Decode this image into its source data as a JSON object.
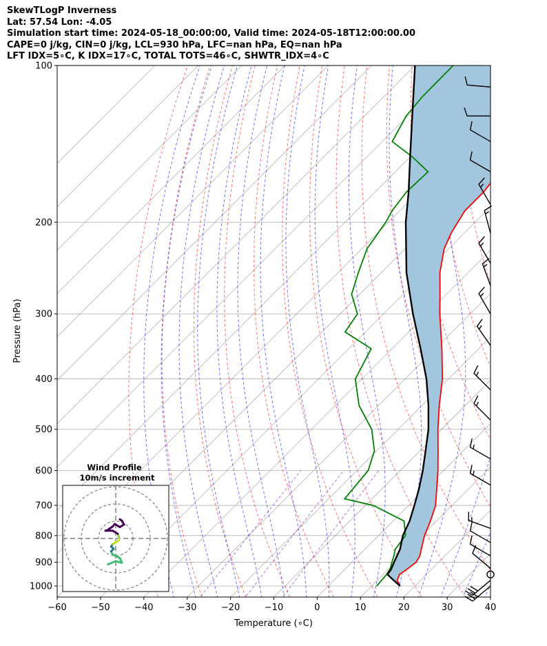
{
  "header": {
    "line1": "SkewTLogP Inverness",
    "line2": "Lat: 57.54   Lon: -4.05",
    "line3": "Simulation start time: 2024-05-18_00:00:00, Valid time: 2024-05-18T12:00:00.00",
    "line4": "CAPE=0 j/kg, CIN=0 j/kg, LCL=930 hPa, LFC=nan hPa, EQ=nan hPa",
    "line5": "LFT IDX=5∘C, K IDX=17∘C, TOTAL TOTS=46∘C, SHWTR_IDX=4∘C"
  },
  "chart_data": {
    "type": "line",
    "title": "SkewTLogP Inverness",
    "xlabel": "Temperature (∘C)",
    "ylabel": "Pressure (hPa)",
    "xlim": [
      -60,
      40
    ],
    "ylim": [
      1050,
      100
    ],
    "y_scale": "log",
    "x_ticks": [
      -60,
      -50,
      -40,
      -30,
      -20,
      -10,
      0,
      10,
      20,
      30,
      40
    ],
    "x_tick_labels": [
      "−60",
      "−50",
      "−40",
      "−30",
      "−20",
      "−10",
      "0",
      "10",
      "20",
      "30",
      "40"
    ],
    "y_ticks": [
      1000,
      900,
      800,
      700,
      600,
      500,
      400,
      300,
      200,
      100
    ],
    "y_tick_labels": [
      "1000",
      "900",
      "800",
      "700",
      "600",
      "500",
      "400",
      "300",
      "200",
      "100"
    ],
    "grid": true,
    "colors": {
      "temperature": "#ff0000",
      "dewpoint": "#008000",
      "parcel": "#000000",
      "shading": "#a3c6df",
      "dry_adiabats": "#ff0000",
      "moist_adiabats": "#0000ff",
      "isotherms": "#808080",
      "mixing_ratio": "#8000c0"
    },
    "series": [
      {
        "key": "temperature",
        "pressure": [
          1000,
          975,
          950,
          925,
          900,
          875,
          850,
          800,
          750,
          700,
          650,
          600,
          550,
          500,
          450,
          400,
          350,
          300,
          275,
          250,
          225,
          210,
          200,
          190,
          175,
          160,
          150,
          140,
          125,
          115,
          100
        ],
        "temp": [
          16.6,
          14.6,
          13.8,
          14.4,
          14.8,
          14.2,
          13.0,
          10.6,
          8.6,
          6.2,
          2.6,
          -1.3,
          -5.8,
          -10.8,
          -16.0,
          -21.4,
          -28.5,
          -37.0,
          -41.5,
          -46.5,
          -51.0,
          -53.0,
          -54.0,
          -55.0,
          -55.0,
          -56.0,
          -56.5,
          -57.2,
          -58.5,
          -59.2,
          -60.5
        ]
      },
      {
        "key": "dewpoint",
        "pressure": [
          1000,
          975,
          950,
          925,
          900,
          875,
          850,
          800,
          750,
          700,
          680,
          600,
          550,
          500,
          450,
          400,
          350,
          325,
          300,
          275,
          250,
          225,
          200,
          190,
          175,
          160,
          150,
          140,
          125,
          115,
          100
        ],
        "temp": [
          11.2,
          11.0,
          10.8,
          10.3,
          9.2,
          8.2,
          7.0,
          6.2,
          2.5,
          -8.2,
          -16.3,
          -17.4,
          -20.5,
          -26.1,
          -34.5,
          -41.5,
          -44.8,
          -54.7,
          -56.0,
          -61.9,
          -65.3,
          -68.8,
          -70.6,
          -71.8,
          -72.8,
          -72.5,
          -79.4,
          -87.7,
          -90.4,
          -91.1,
          -91.2
        ]
      },
      {
        "key": "parcel",
        "pressure": [
          1000,
          975,
          950,
          930,
          900,
          850,
          800,
          750,
          700,
          650,
          600,
          550,
          500,
          450,
          400,
          350,
          300,
          250,
          200,
          175,
          150,
          125,
          100
        ],
        "temp": [
          16.6,
          13.8,
          11.0,
          10.7,
          9.7,
          8.1,
          5.6,
          3.8,
          1.3,
          -1.5,
          -4.8,
          -8.7,
          -13.0,
          -18.5,
          -25.1,
          -33.4,
          -43.2,
          -54.2,
          -66.0,
          -72.3,
          -80.0,
          -89.0,
          -100.0
        ]
      }
    ],
    "wind_barbs": [
      {
        "pressure": 1000,
        "speed_kt": 30,
        "dir_deg": 230
      },
      {
        "pressure": 975,
        "speed_kt": 30,
        "dir_deg": 230
      },
      {
        "pressure": 950,
        "speed_kt": 0,
        "dir_deg": 0
      },
      {
        "pressure": 925,
        "speed_kt": 10,
        "dir_deg": 310
      },
      {
        "pressure": 875,
        "speed_kt": 10,
        "dir_deg": 300
      },
      {
        "pressure": 825,
        "speed_kt": 10,
        "dir_deg": 300
      },
      {
        "pressure": 775,
        "speed_kt": 15,
        "dir_deg": 290
      },
      {
        "pressure": 640,
        "speed_kt": 15,
        "dir_deg": 300
      },
      {
        "pressure": 570,
        "speed_kt": 15,
        "dir_deg": 300
      },
      {
        "pressure": 480,
        "speed_kt": 15,
        "dir_deg": 315
      },
      {
        "pressure": 420,
        "speed_kt": 15,
        "dir_deg": 315
      },
      {
        "pressure": 345,
        "speed_kt": 15,
        "dir_deg": 325
      },
      {
        "pressure": 300,
        "speed_kt": 15,
        "dir_deg": 330
      },
      {
        "pressure": 265,
        "speed_kt": 15,
        "dir_deg": 340
      },
      {
        "pressure": 240,
        "speed_kt": 15,
        "dir_deg": 330
      },
      {
        "pressure": 210,
        "speed_kt": 15,
        "dir_deg": 345
      },
      {
        "pressure": 185,
        "speed_kt": 15,
        "dir_deg": 330
      },
      {
        "pressure": 160,
        "speed_kt": 10,
        "dir_deg": 300
      },
      {
        "pressure": 140,
        "speed_kt": 10,
        "dir_deg": 300
      },
      {
        "pressure": 125,
        "speed_kt": 10,
        "dir_deg": 270
      },
      {
        "pressure": 110,
        "speed_kt": 10,
        "dir_deg": 275
      }
    ],
    "hodograph": {
      "title": "Wind Profile",
      "subtitle": "10m/s increment",
      "rings": 3,
      "points": [
        {
          "u": -1.5,
          "v": -5.0,
          "color": "#3fbc73"
        },
        {
          "u": 0.0,
          "v": -4.4,
          "color": "#3fbc73"
        },
        {
          "u": 1.2,
          "v": -4.7,
          "color": "#3fbc73"
        },
        {
          "u": 0.8,
          "v": -3.8,
          "color": "#3fbc73"
        },
        {
          "u": -0.6,
          "v": -3.1,
          "color": "#3fbc73"
        },
        {
          "u": -0.9,
          "v": -2.5,
          "color": "#3fbc73"
        },
        {
          "u": -0.4,
          "v": -2.0,
          "color": "#2a788e"
        },
        {
          "u": -0.9,
          "v": -1.6,
          "color": "#2a788e"
        },
        {
          "u": -0.6,
          "v": -1.1,
          "color": "#31688e"
        },
        {
          "u": 0.0,
          "v": -0.8,
          "color": "#a8db34"
        },
        {
          "u": 0.6,
          "v": -0.4,
          "color": "#d5e21a"
        },
        {
          "u": 0.6,
          "v": 0.3,
          "color": "#d5e21a"
        },
        {
          "u": 0.4,
          "v": 0.9,
          "color": "#7ad151"
        },
        {
          "u": -0.6,
          "v": 1.5,
          "color": "#440154"
        },
        {
          "u": -2.0,
          "v": 1.5,
          "color": "#440154"
        },
        {
          "u": -1.6,
          "v": 1.6,
          "color": "#440154"
        },
        {
          "u": -1.2,
          "v": 1.9,
          "color": "#440154"
        },
        {
          "u": -0.6,
          "v": 2.3,
          "color": "#440154"
        },
        {
          "u": -0.2,
          "v": 2.8,
          "color": "#440154"
        },
        {
          "u": 0.8,
          "v": 2.2,
          "color": "#440154"
        },
        {
          "u": 1.6,
          "v": 2.7,
          "color": "#440154"
        },
        {
          "u": 1.2,
          "v": 3.4,
          "color": "#440154"
        },
        {
          "u": 0.8,
          "v": 3.7,
          "color": "#440154"
        }
      ]
    }
  }
}
